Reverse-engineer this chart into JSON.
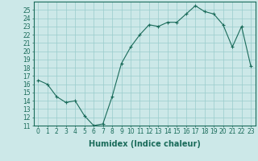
{
  "x": [
    0,
    1,
    2,
    3,
    4,
    5,
    6,
    7,
    8,
    9,
    10,
    11,
    12,
    13,
    14,
    15,
    16,
    17,
    18,
    19,
    20,
    21,
    22,
    23
  ],
  "y": [
    16.5,
    16.0,
    14.5,
    13.8,
    14.0,
    12.2,
    11.0,
    11.2,
    14.5,
    18.5,
    20.5,
    22.0,
    23.2,
    23.0,
    23.5,
    23.5,
    24.5,
    25.5,
    24.8,
    24.5,
    23.2,
    20.5,
    23.0,
    18.2
  ],
  "line_color": "#1a6b5a",
  "marker": "+",
  "marker_size": 3,
  "bg_color": "#cce8e8",
  "grid_color": "#99cccc",
  "xlabel": "Humidex (Indice chaleur)",
  "ylabel": "",
  "xlim": [
    -0.5,
    23.5
  ],
  "ylim": [
    11,
    26
  ],
  "yticks": [
    11,
    12,
    13,
    14,
    15,
    16,
    17,
    18,
    19,
    20,
    21,
    22,
    23,
    24,
    25
  ],
  "xtick_labels": [
    "0",
    "1",
    "2",
    "3",
    "4",
    "5",
    "6",
    "7",
    "8",
    "9",
    "10",
    "11",
    "12",
    "13",
    "14",
    "15",
    "16",
    "17",
    "18",
    "19",
    "20",
    "21",
    "22",
    "23"
  ],
  "tick_fontsize": 5.5,
  "xlabel_fontsize": 7
}
